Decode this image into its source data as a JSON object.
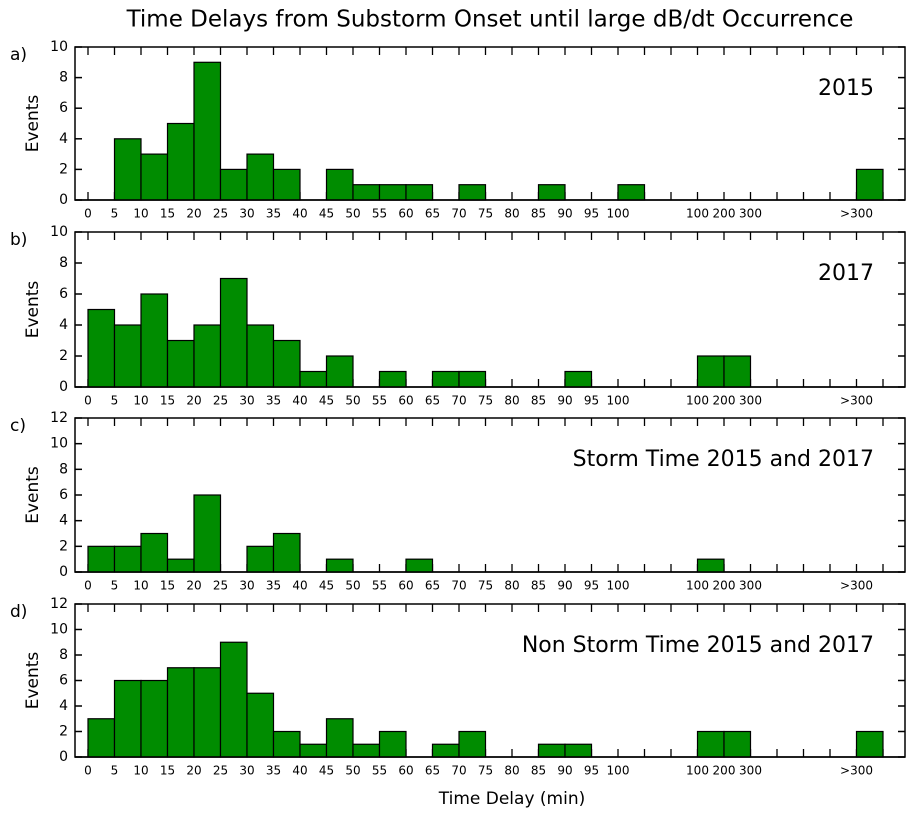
{
  "title": "Time Delays from Substorm Onset until large dB/dt Occurrence",
  "xlabel": "Time Delay (min)",
  "chart_data": [
    {
      "type": "bar",
      "panel": "a)",
      "ylabel": "Events",
      "annotation": "2015",
      "color": "#008c00",
      "categories": [
        "0",
        "5",
        "10",
        "15",
        "20",
        "25",
        "30",
        "35",
        "40",
        "45",
        "50",
        "55",
        "60",
        "65",
        "70",
        "75",
        "80",
        "85",
        "90",
        "95",
        "100",
        null,
        null,
        "100",
        "200",
        "300",
        null,
        null,
        null,
        ">300",
        null
      ],
      "values": [
        0,
        4,
        3,
        5,
        9,
        2,
        3,
        2,
        0,
        2,
        1,
        1,
        1,
        0,
        1,
        0,
        0,
        1,
        0,
        0,
        1,
        0,
        0,
        0,
        0,
        0,
        0,
        0,
        0,
        2,
        0
      ],
      "ylim": [
        0,
        10
      ],
      "yticks": [
        0,
        2,
        4,
        6,
        8,
        10
      ]
    },
    {
      "type": "bar",
      "panel": "b)",
      "ylabel": "Events",
      "annotation": "2017",
      "color": "#008c00",
      "categories": [
        "0",
        "5",
        "10",
        "15",
        "20",
        "25",
        "30",
        "35",
        "40",
        "45",
        "50",
        "55",
        "60",
        "65",
        "70",
        "75",
        "80",
        "85",
        "90",
        "95",
        "100",
        null,
        null,
        "100",
        "200",
        "300",
        null,
        null,
        null,
        ">300",
        null
      ],
      "values": [
        5,
        4,
        6,
        3,
        4,
        7,
        4,
        3,
        1,
        2,
        0,
        1,
        0,
        1,
        1,
        0,
        0,
        0,
        1,
        0,
        0,
        0,
        0,
        2,
        2,
        0,
        0,
        0,
        0,
        0,
        0
      ],
      "ylim": [
        0,
        10
      ],
      "yticks": [
        0,
        2,
        4,
        6,
        8,
        10
      ]
    },
    {
      "type": "bar",
      "panel": "c)",
      "ylabel": "Events",
      "annotation": "Storm Time 2015 and 2017",
      "color": "#008c00",
      "categories": [
        "0",
        "5",
        "10",
        "15",
        "20",
        "25",
        "30",
        "35",
        "40",
        "45",
        "50",
        "55",
        "60",
        "65",
        "70",
        "75",
        "80",
        "85",
        "90",
        "95",
        "100",
        null,
        null,
        "100",
        "200",
        "300",
        null,
        null,
        null,
        ">300",
        null
      ],
      "values": [
        2,
        2,
        3,
        1,
        6,
        0,
        2,
        3,
        0,
        1,
        0,
        0,
        1,
        0,
        0,
        0,
        0,
        0,
        0,
        0,
        0,
        0,
        0,
        1,
        0,
        0,
        0,
        0,
        0,
        0,
        0
      ],
      "ylim": [
        0,
        12
      ],
      "yticks": [
        0,
        2,
        4,
        6,
        8,
        10,
        12
      ]
    },
    {
      "type": "bar",
      "panel": "d)",
      "ylabel": "Events",
      "annotation": "Non Storm Time 2015 and 2017",
      "color": "#008c00",
      "categories": [
        "0",
        "5",
        "10",
        "15",
        "20",
        "25",
        "30",
        "35",
        "40",
        "45",
        "50",
        "55",
        "60",
        "65",
        "70",
        "75",
        "80",
        "85",
        "90",
        "95",
        "100",
        null,
        null,
        "100",
        "200",
        "300",
        null,
        null,
        null,
        ">300",
        null
      ],
      "values": [
        3,
        6,
        6,
        7,
        7,
        9,
        5,
        2,
        1,
        3,
        1,
        2,
        0,
        1,
        2,
        0,
        0,
        1,
        1,
        0,
        0,
        0,
        0,
        2,
        2,
        0,
        0,
        0,
        0,
        2,
        0
      ],
      "ylim": [
        0,
        12
      ],
      "yticks": [
        0,
        2,
        4,
        6,
        8,
        10,
        12
      ]
    }
  ]
}
